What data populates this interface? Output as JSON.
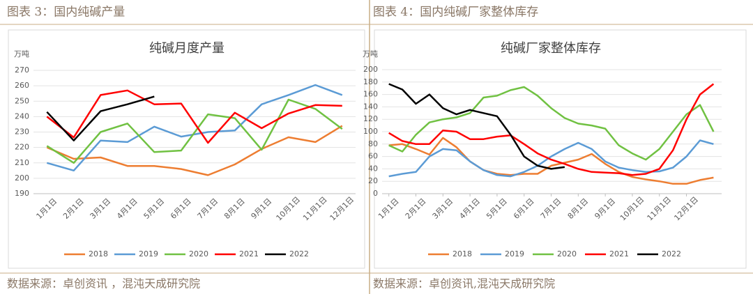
{
  "chart_data": [
    {
      "type": "line",
      "figure_title": "图表 3：国内纯碱产量",
      "title": "纯碱月度产量",
      "y_label": "万吨",
      "source": "数据来源：卓创资讯 ，混沌天成研究院",
      "categories": [
        "1月1日",
        "2月1日",
        "3月1日",
        "4月1日",
        "5月1日",
        "6月1日",
        "7月1日",
        "8月1日",
        "9月1日",
        "10月1日",
        "11月1日",
        "12月1日"
      ],
      "ylim": [
        190,
        270
      ],
      "yticks": [
        190,
        200,
        210,
        220,
        230,
        240,
        250,
        260,
        270
      ],
      "grid": true,
      "series": [
        {
          "name": "2018",
          "color": "#ed7d31",
          "values": [
            220,
            212.6,
            213.5,
            208,
            208,
            206,
            202,
            209,
            219,
            226.6,
            223.5,
            234
          ]
        },
        {
          "name": "2019",
          "color": "#5b9bd5",
          "values": [
            210,
            205,
            224.5,
            223.5,
            233.5,
            227,
            230,
            231,
            248,
            254,
            260.5,
            254
          ]
        },
        {
          "name": "2020",
          "color": "#70c142",
          "values": [
            221,
            210,
            230,
            235.5,
            217,
            218,
            241.5,
            239,
            218.5,
            251,
            245,
            232
          ]
        },
        {
          "name": "2021",
          "color": "#ff0000",
          "values": [
            240,
            226.5,
            254,
            257,
            248,
            248.5,
            223,
            242.5,
            232.5,
            242,
            247.5,
            247
          ]
        },
        {
          "name": "2022",
          "color": "#000000",
          "values": [
            243,
            224.5,
            243.5,
            248,
            253,
            null,
            null,
            null,
            null,
            null,
            null,
            null
          ]
        }
      ]
    },
    {
      "type": "line",
      "figure_title": "图表 4：国内纯碱厂家整体库存",
      "title": "纯碱厂家整体库存",
      "y_label": "万吨",
      "source": "数据来源：卓创资讯,混沌天成研究院",
      "x": [
        0,
        0.5,
        1,
        1.5,
        2,
        2.5,
        3,
        3.5,
        4,
        4.5,
        5,
        5.5,
        6,
        6.5,
        7,
        7.5,
        8,
        8.5,
        9,
        9.5,
        10,
        10.5,
        11,
        11.5,
        12
      ],
      "xlim": [
        -0.25,
        12.3
      ],
      "xticks": [
        {
          "value": 0,
          "label": "1月1日"
        },
        {
          "value": 1,
          "label": "2月1日"
        },
        {
          "value": 2,
          "label": "3月1日"
        },
        {
          "value": 3,
          "label": "4月1日"
        },
        {
          "value": 4,
          "label": "5月1日"
        },
        {
          "value": 5,
          "label": "6月1日"
        },
        {
          "value": 6,
          "label": "7月1日"
        },
        {
          "value": 7,
          "label": "8月1日"
        },
        {
          "value": 8,
          "label": "9月1日"
        },
        {
          "value": 9,
          "label": "10月1日"
        },
        {
          "value": 10,
          "label": "11月1日"
        },
        {
          "value": 11,
          "label": "12月1日"
        }
      ],
      "ylim": [
        0,
        200
      ],
      "yticks": [
        0,
        20,
        40,
        60,
        80,
        100,
        120,
        140,
        160,
        180,
        200
      ],
      "grid": true,
      "series": [
        {
          "name": "2018",
          "color": "#ed7d31",
          "values": [
            78,
            80,
            72,
            63,
            90,
            75,
            52,
            38,
            32,
            30,
            32,
            32,
            45,
            50,
            55,
            64,
            48,
            35,
            27,
            23,
            20,
            16,
            16,
            22,
            26
          ]
        },
        {
          "name": "2019",
          "color": "#5b9bd5",
          "values": [
            28,
            32,
            35,
            60,
            72,
            70,
            52,
            38,
            30,
            28,
            35,
            45,
            60,
            72,
            82,
            72,
            52,
            42,
            38,
            35,
            36,
            42,
            60,
            86,
            80
          ]
        },
        {
          "name": "2020",
          "color": "#70c142",
          "values": [
            78,
            68,
            95,
            115,
            120,
            123,
            130,
            155,
            158,
            167,
            172,
            158,
            138,
            122,
            113,
            110,
            105,
            78,
            65,
            55,
            72,
            100,
            128,
            143,
            100
          ]
        },
        {
          "name": "2021",
          "color": "#ff0000",
          "values": [
            98,
            85,
            80,
            80,
            102,
            100,
            88,
            88,
            92,
            94,
            80,
            65,
            55,
            48,
            40,
            35,
            34,
            33,
            30,
            32,
            40,
            70,
            120,
            160,
            177
          ]
        },
        {
          "name": "2022",
          "color": "#000000",
          "values": [
            177,
            168,
            145,
            160,
            138,
            128,
            135,
            130,
            125,
            95,
            60,
            45,
            40,
            43,
            null,
            null,
            null,
            null,
            null,
            null,
            null,
            null,
            null,
            null,
            null
          ]
        }
      ]
    }
  ]
}
